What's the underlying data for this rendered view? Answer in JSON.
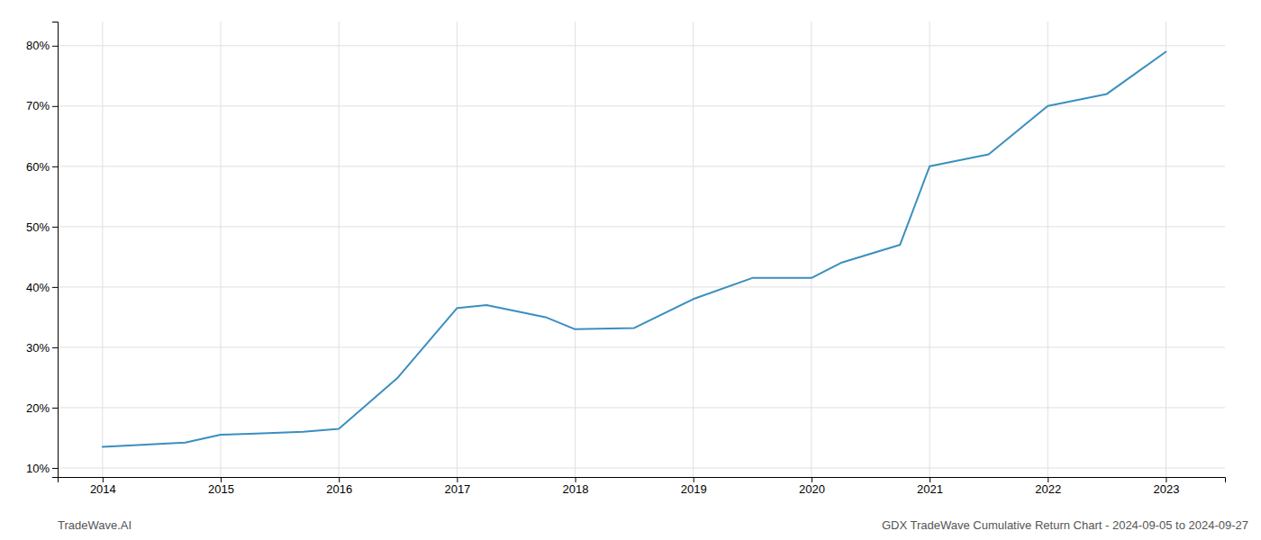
{
  "chart_data": {
    "type": "line",
    "x": [
      2014.0,
      2014.7,
      2015.0,
      2015.3,
      2015.7,
      2016.0,
      2016.5,
      2017.0,
      2017.25,
      2017.75,
      2018.0,
      2018.5,
      2019.0,
      2019.5,
      2020.0,
      2020.25,
      2020.75,
      2021.0,
      2021.5,
      2022.0,
      2022.5,
      2023.0
    ],
    "values": [
      13.5,
      14.2,
      15.5,
      15.7,
      16.0,
      16.5,
      25.0,
      36.5,
      37.0,
      35.0,
      33.0,
      33.2,
      38.0,
      41.5,
      41.5,
      44.0,
      47.0,
      60.0,
      62.0,
      70.0,
      72.0,
      79.0
    ],
    "color": "#3a8fbf",
    "xlim": [
      2013.62,
      2023.5
    ],
    "ylim": [
      8.5,
      84
    ],
    "xticks": [
      2014,
      2015,
      2016,
      2017,
      2018,
      2019,
      2020,
      2021,
      2022,
      2023
    ],
    "yticks": [
      {
        "value": 10,
        "label": "10%"
      },
      {
        "value": 20,
        "label": "20%"
      },
      {
        "value": 30,
        "label": "30%"
      },
      {
        "value": 40,
        "label": "40%"
      },
      {
        "value": 50,
        "label": "50%"
      },
      {
        "value": 60,
        "label": "60%"
      },
      {
        "value": 70,
        "label": "70%"
      },
      {
        "value": 80,
        "label": "80%"
      }
    ],
    "grid": true,
    "annotations": [
      "TradeWave.AI",
      "GDX TradeWave Cumulative Return Chart - 2024-09-05 to 2024-09-27"
    ]
  }
}
